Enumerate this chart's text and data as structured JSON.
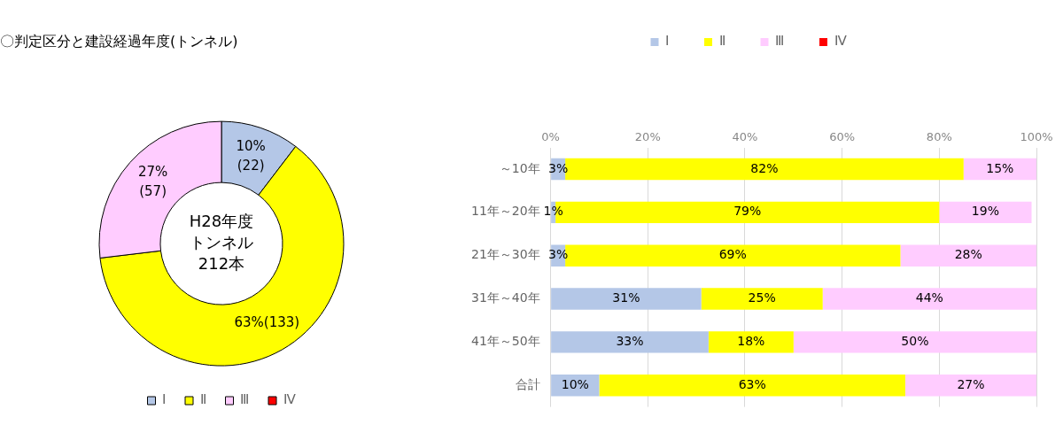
{
  "chart_data": [
    {
      "type": "donut",
      "title": "〇判定区分と建設経過年度(トンネル)",
      "categories": [
        "Ⅰ",
        "Ⅱ",
        "Ⅲ",
        "Ⅳ"
      ],
      "values": [
        22,
        133,
        57,
        0
      ],
      "colors": [
        "#b4c7e7",
        "#ffff00",
        "#ffccff",
        "#ff0000"
      ],
      "value_labels": [
        "10%\n(22)",
        "63%(133)",
        "27%\n(57)",
        null
      ],
      "annotations": [
        "H28年度",
        "トンネル",
        "212本"
      ],
      "legend": "bottom"
    },
    {
      "type": "bar",
      "orientation": "horizontal",
      "stacked": true,
      "categories": [
        "～10年",
        "11年～20年",
        "21年～30年",
        "31年～40年",
        "41年～50年",
        "合計"
      ],
      "series": [
        {
          "name": "Ⅰ",
          "color": "#b4c7e7",
          "values": [
            3,
            1,
            3,
            31,
            32.5,
            10
          ],
          "value_labels": [
            "3%",
            "1%",
            "3%",
            "31%",
            "33%",
            "10%"
          ]
        },
        {
          "name": "Ⅱ",
          "color": "#ffff00",
          "values": [
            82,
            79,
            69,
            25,
            17.5,
            63
          ],
          "value_labels": [
            "82%",
            "79%",
            "69%",
            "25%",
            "18%",
            "63%"
          ]
        },
        {
          "name": "Ⅲ",
          "color": "#ffccff",
          "values": [
            15,
            19,
            28,
            44,
            50,
            27
          ],
          "value_labels": [
            "15%",
            "19%",
            "28%",
            "44%",
            "50%",
            "27%"
          ]
        },
        {
          "name": "Ⅳ",
          "color": "#ff0000",
          "values": [
            0,
            0,
            0,
            0,
            0,
            0
          ],
          "value_labels": [
            null,
            null,
            null,
            null,
            null,
            null
          ]
        }
      ],
      "xlim": [
        0,
        100
      ],
      "xticks": [
        {
          "value": 0,
          "label": "0%"
        },
        {
          "value": 20,
          "label": "20%"
        },
        {
          "value": 40,
          "label": "40%"
        },
        {
          "value": 60,
          "label": "60%"
        },
        {
          "value": 80,
          "label": "80%"
        },
        {
          "value": 100,
          "label": "100%"
        }
      ],
      "grid": "x",
      "legend": "top"
    }
  ]
}
